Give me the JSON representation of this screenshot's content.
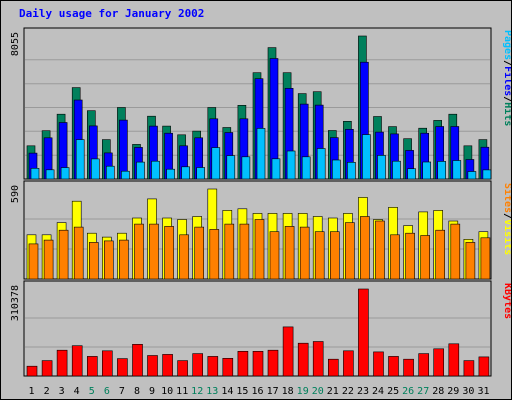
{
  "colors": {
    "background": "#c0c0c0",
    "hits": "#00805c",
    "files": "#0000ff",
    "pages": "#00c0ff",
    "visits": "#ffff00",
    "sites": "#ff8000",
    "kbytes": "#ff0000",
    "title": "#0000ff",
    "weekday_label": "#000000",
    "weekend_label": "#00805c"
  },
  "chart_data": [
    {
      "type": "bar",
      "title": "Daily usage for January 2002",
      "categories": [
        "1",
        "2",
        "3",
        "4",
        "5",
        "6",
        "7",
        "8",
        "9",
        "10",
        "11",
        "12",
        "13",
        "14",
        "15",
        "16",
        "17",
        "18",
        "19",
        "20",
        "21",
        "22",
        "23",
        "24",
        "25",
        "26",
        "27",
        "28",
        "29",
        "30",
        "31"
      ],
      "weekend_days": [
        "5",
        "6",
        "12",
        "13",
        "19",
        "20",
        "26",
        "27"
      ],
      "ylim": [
        0,
        8055
      ],
      "y_max_label": "8055",
      "grid": true,
      "legend": [
        "Pages",
        "Files",
        "Hits"
      ],
      "legend_separator": "/",
      "legend_position": "right",
      "series": [
        {
          "name": "Hits",
          "values": [
            1870,
            2720,
            3650,
            5150,
            3850,
            2220,
            4030,
            1950,
            3540,
            2980,
            2490,
            2700,
            4030,
            2900,
            4150,
            5990,
            7400,
            5990,
            4810,
            4920,
            2730,
            3250,
            8055,
            3520,
            2950,
            2270,
            2860,
            3300,
            3650,
            1870,
            2220
          ]
        },
        {
          "name": "Files",
          "values": [
            1460,
            2320,
            3180,
            4450,
            2990,
            1470,
            3320,
            1780,
            2980,
            2580,
            1870,
            2320,
            3390,
            2620,
            3390,
            5650,
            6790,
            5110,
            4220,
            4160,
            2330,
            2800,
            6580,
            2640,
            2540,
            1610,
            2580,
            2960,
            2960,
            1100,
            1790
          ]
        },
        {
          "name": "Pages",
          "values": [
            600,
            520,
            640,
            2220,
            1130,
            720,
            440,
            950,
            1000,
            550,
            690,
            650,
            1770,
            1320,
            1250,
            2850,
            1140,
            1580,
            1250,
            1720,
            1070,
            940,
            2500,
            1330,
            1000,
            580,
            960,
            990,
            1040,
            420,
            510
          ]
        }
      ]
    },
    {
      "type": "bar",
      "categories": [
        "1",
        "2",
        "3",
        "4",
        "5",
        "6",
        "7",
        "8",
        "9",
        "10",
        "11",
        "12",
        "13",
        "14",
        "15",
        "16",
        "17",
        "18",
        "19",
        "20",
        "21",
        "22",
        "23",
        "24",
        "25",
        "26",
        "27",
        "28",
        "29",
        "30",
        "31"
      ],
      "ylim": [
        0,
        590
      ],
      "y_max_label": "590",
      "grid": true,
      "legend": [
        "Sites",
        "Visits"
      ],
      "legend_separator": "/",
      "legend_position": "right",
      "series": [
        {
          "name": "Visits",
          "values": [
            290,
            290,
            370,
            510,
            300,
            275,
            300,
            400,
            525,
            400,
            390,
            410,
            590,
            450,
            460,
            430,
            430,
            430,
            430,
            410,
            400,
            430,
            535,
            390,
            470,
            350,
            440,
            450,
            380,
            260,
            310
          ]
        },
        {
          "name": "Sites",
          "values": [
            230,
            255,
            320,
            340,
            240,
            250,
            255,
            360,
            360,
            345,
            290,
            340,
            325,
            360,
            360,
            390,
            310,
            345,
            340,
            310,
            310,
            370,
            410,
            380,
            290,
            300,
            285,
            320,
            360,
            240,
            270
          ]
        }
      ]
    },
    {
      "type": "bar",
      "categories": [
        "1",
        "2",
        "3",
        "4",
        "5",
        "6",
        "7",
        "8",
        "9",
        "10",
        "11",
        "12",
        "13",
        "14",
        "15",
        "16",
        "17",
        "18",
        "19",
        "20",
        "21",
        "22",
        "23",
        "24",
        "25",
        "26",
        "27",
        "28",
        "29",
        "30",
        "31"
      ],
      "ylim": [
        0,
        310378
      ],
      "y_max_label": "310378",
      "grid": true,
      "legend": [
        "KBytes"
      ],
      "legend_position": "right",
      "series": [
        {
          "name": "KBytes",
          "values": [
            35000,
            55000,
            92000,
            108000,
            70000,
            90000,
            62000,
            113000,
            73000,
            77000,
            55000,
            80000,
            70000,
            63000,
            88000,
            88000,
            92000,
            175000,
            117000,
            123000,
            60000,
            90000,
            310378,
            86000,
            70000,
            60000,
            80000,
            97000,
            115000,
            55000,
            68000
          ]
        }
      ]
    }
  ]
}
